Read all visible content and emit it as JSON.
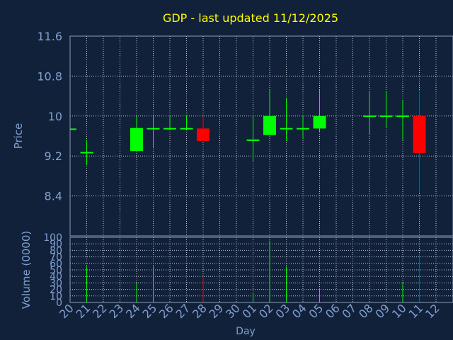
{
  "chart_data": {
    "type": "candlestick",
    "title": "GDP - last updated 11/12/2025",
    "xlabel": "Day",
    "ylabel": "Price",
    "volume_ylabel": "Volume (0000)",
    "price_ylim": [
      7.6,
      11.6
    ],
    "price_ticks": [
      "11.6",
      "10.8",
      "10",
      "9.2",
      "8.4"
    ],
    "volume_ylim": [
      0,
      100
    ],
    "volume_ticks": [
      "100",
      "90",
      "80",
      "70",
      "60",
      "50",
      "40",
      "30",
      "20",
      "10",
      "0"
    ],
    "grid": true,
    "x_tick_labels": [
      "20",
      "21",
      "22",
      "23",
      "24",
      "25",
      "26",
      "27",
      "28",
      "29",
      "30",
      "01",
      "02",
      "03",
      "04",
      "05",
      "06",
      "07",
      "08",
      "09",
      "10",
      "11",
      "12"
    ],
    "candles": [
      {
        "day": "20",
        "open": 9.75,
        "high": 9.75,
        "low": 9.75,
        "close": 9.75,
        "volume": 0
      },
      {
        "day": "21",
        "open": 9.28,
        "high": 9.52,
        "low": 9.02,
        "close": 9.28,
        "volume": 55
      },
      {
        "day": "24",
        "open": 9.3,
        "high": 10.0,
        "low": 9.3,
        "close": 9.76,
        "volume": 30
      },
      {
        "day": "25",
        "open": 9.75,
        "high": 10.0,
        "low": 9.36,
        "close": 9.76,
        "volume": 55
      },
      {
        "day": "26",
        "open": 9.75,
        "high": 10.0,
        "low": 9.72,
        "close": 9.76,
        "volume": 0
      },
      {
        "day": "27",
        "open": 9.75,
        "high": 10.0,
        "low": 9.72,
        "close": 9.76,
        "volume": 0
      },
      {
        "day": "28",
        "open": 9.75,
        "high": 10.0,
        "low": 9.5,
        "close": 9.5,
        "volume": 40
      },
      {
        "day": "01",
        "open": 9.52,
        "high": 10.0,
        "low": 9.1,
        "close": 9.53,
        "volume": 15
      },
      {
        "day": "02",
        "open": 9.62,
        "high": 10.52,
        "low": 9.62,
        "close": 10.0,
        "volume": 95
      },
      {
        "day": "03",
        "open": 9.75,
        "high": 10.36,
        "low": 9.5,
        "close": 9.76,
        "volume": 55
      },
      {
        "day": "04",
        "open": 9.75,
        "high": 10.0,
        "low": 9.55,
        "close": 9.76,
        "volume": 0
      },
      {
        "day": "05",
        "open": 9.75,
        "high": 10.52,
        "low": 9.68,
        "close": 10.0,
        "volume": 22
      },
      {
        "day": "08",
        "open": 10.0,
        "high": 10.48,
        "low": 9.62,
        "close": 10.01,
        "volume": 0
      },
      {
        "day": "09",
        "open": 10.0,
        "high": 10.48,
        "low": 9.76,
        "close": 10.01,
        "volume": 0
      },
      {
        "day": "10",
        "open": 10.0,
        "high": 10.32,
        "low": 9.52,
        "close": 10.01,
        "volume": 30
      },
      {
        "day": "11",
        "open": 10.0,
        "high": 10.52,
        "low": 8.45,
        "close": 9.26,
        "volume": 75
      }
    ]
  },
  "colors": {
    "background": "#12213a",
    "plot_border": "#8a9bb8",
    "grid": "#c4ccda",
    "tick_label": "#7fa0d0",
    "title": "#ffff00",
    "up": "#00ff00",
    "down": "#ff0000"
  }
}
